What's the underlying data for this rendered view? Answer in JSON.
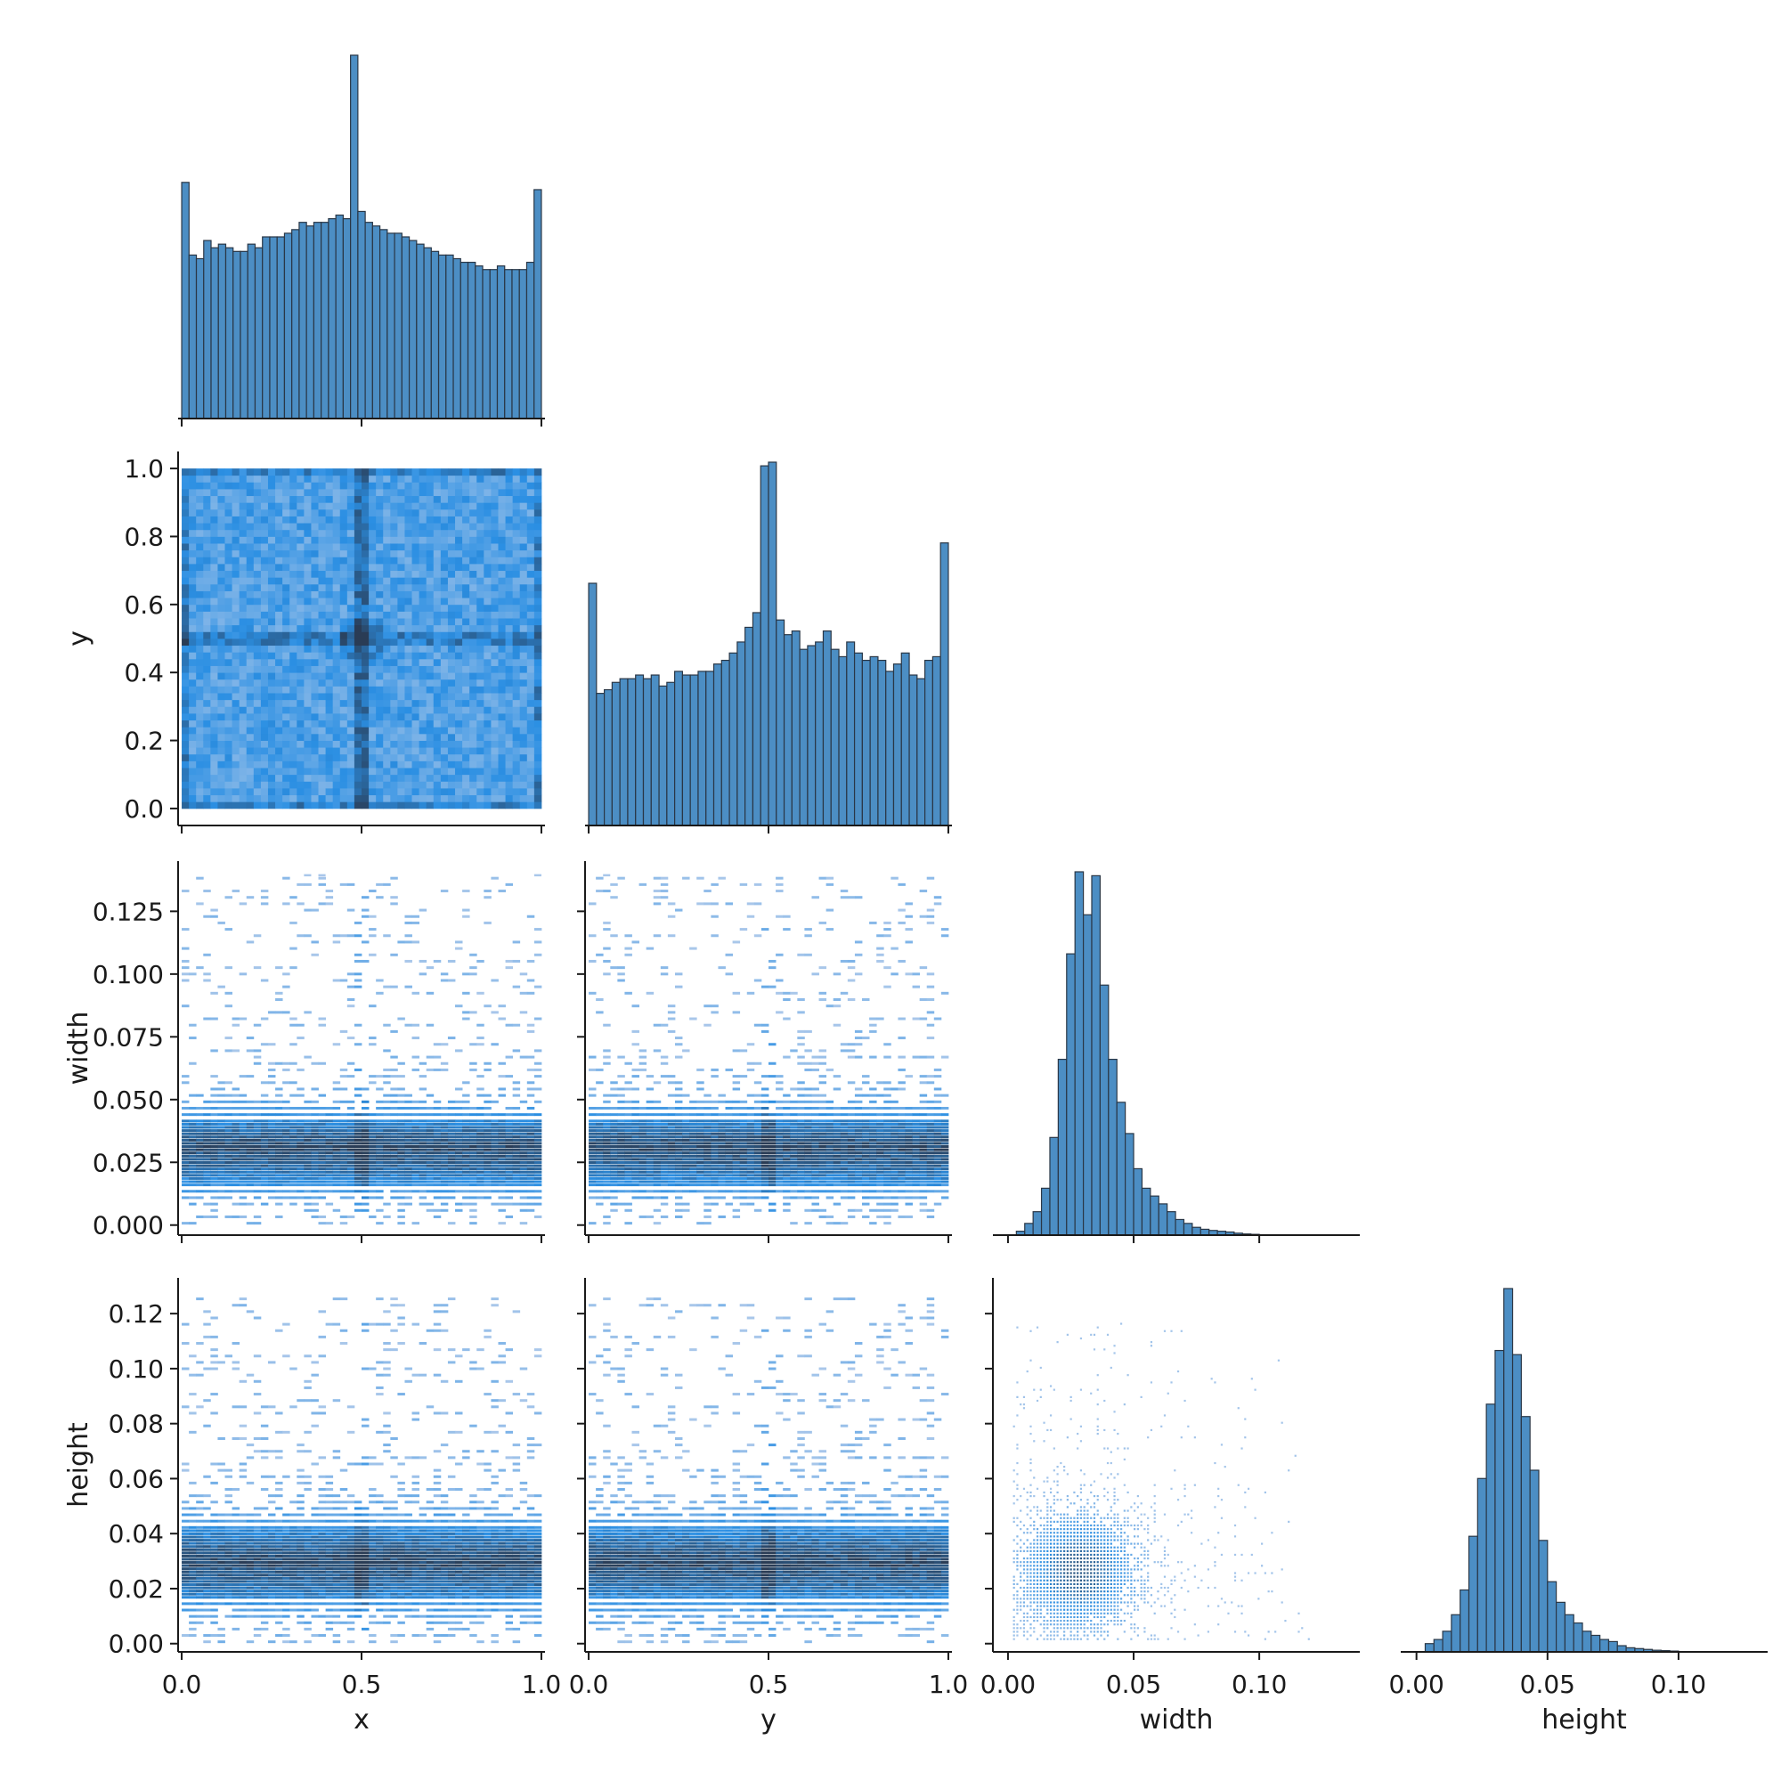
{
  "chart_data": {
    "type": "pairplot",
    "variables": [
      "x",
      "y",
      "width",
      "height"
    ],
    "corner": true,
    "colors": {
      "bar_fill": "#4c8ec4",
      "bar_edge": "#2a3746",
      "heat_low": "#a9c7ea",
      "heat_mid": "#2b8fe3",
      "heat_high": "#2a3c55",
      "axis": "#1a1a1a"
    },
    "xlabels": [
      "x",
      "y",
      "width",
      "height"
    ],
    "ylabels": [
      "",
      "y",
      "width",
      "height"
    ],
    "x_ticks": {
      "x": [
        "0.0",
        "0.5",
        "1.0"
      ],
      "y": [
        "0.0",
        "0.5",
        "1.0"
      ],
      "width": [
        "0.00",
        "0.05",
        "0.10"
      ],
      "height": [
        "0.00",
        "0.05",
        "0.10"
      ]
    },
    "y_ticks": {
      "y": [
        "0.0",
        "0.2",
        "0.4",
        "0.6",
        "0.8",
        "1.0"
      ],
      "width": [
        "0.000",
        "0.025",
        "0.050",
        "0.075",
        "0.100",
        "0.125"
      ],
      "height": [
        "0.00",
        "0.02",
        "0.04",
        "0.06",
        "0.08",
        "0.10",
        "0.12"
      ]
    },
    "ranges": {
      "x": [
        -0.01,
        1.01
      ],
      "y": [
        -0.05,
        1.05
      ],
      "width": [
        -0.004,
        0.145
      ],
      "height": [
        -0.003,
        0.133
      ],
      "width_hist_x": [
        -0.006,
        0.14
      ],
      "height_hist_x": [
        -0.006,
        0.134
      ]
    },
    "hist_x": {
      "bin_range": [
        0,
        1
      ],
      "counts": [
        65,
        45,
        44,
        49,
        47,
        48,
        47,
        46,
        46,
        48,
        47,
        50,
        50,
        50,
        51,
        52,
        54,
        53,
        54,
        54,
        55,
        56,
        55,
        100,
        57,
        54,
        53,
        52,
        51,
        51,
        50,
        49,
        48,
        47,
        46,
        45,
        45,
        44,
        43,
        43,
        42,
        41,
        41,
        42,
        41,
        41,
        41,
        43,
        63
      ]
    },
    "hist_y": {
      "bin_range": [
        0,
        1
      ],
      "counts": [
        66,
        36,
        37,
        39,
        40,
        40,
        41,
        40,
        41,
        38,
        39,
        42,
        41,
        41,
        42,
        42,
        44,
        45,
        47,
        50,
        54,
        58,
        98,
        99,
        56,
        52,
        53,
        48,
        49,
        50,
        53,
        48,
        46,
        50,
        47,
        45,
        46,
        45,
        42,
        44,
        47,
        41,
        40,
        45,
        46,
        77
      ]
    },
    "hist_width": {
      "bin_range": [
        0,
        0.1
      ],
      "counts": [
        0,
        1,
        3,
        6,
        12,
        25,
        45,
        72,
        93,
        82,
        92,
        64,
        45,
        34,
        26,
        17,
        12,
        10,
        8,
        6,
        4,
        3,
        2,
        1.5,
        1.2,
        1,
        0.8,
        0.5,
        0.3,
        0.2
      ]
    },
    "hist_height": {
      "bin_range": [
        0,
        0.1
      ],
      "counts": [
        0,
        2,
        3,
        5,
        9,
        15,
        28,
        42,
        60,
        73,
        88,
        72,
        57,
        44,
        27,
        17,
        12,
        9,
        7,
        5,
        4,
        3,
        2.5,
        1.5,
        1,
        0.8,
        0.6,
        0.4,
        0.3,
        0.2
      ]
    }
  }
}
